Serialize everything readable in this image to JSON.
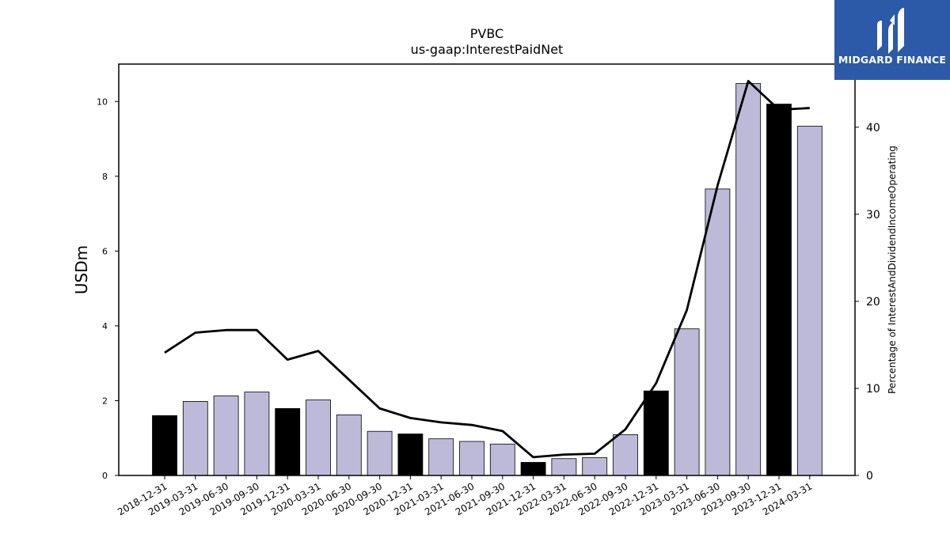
{
  "chart_data": {
    "type": "bar",
    "title": "PVBC",
    "subtitle": "us-gaap:InterestPaidNet",
    "ylabel": "USDm",
    "y2label": "Percentage of InterestAndDividendIncomeOperating",
    "ylim": [
      0,
      11
    ],
    "y2lim": [
      0,
      47.25
    ],
    "yticks": [
      0,
      2,
      4,
      6,
      8,
      10
    ],
    "y2ticks": [
      0,
      10,
      20,
      30,
      40
    ],
    "categories": [
      "2018-12-31",
      "2019-03-31",
      "2019-06-30",
      "2019-09-30",
      "2019-12-31",
      "2020-03-31",
      "2020-06-30",
      "2020-09-30",
      "2020-12-31",
      "2021-03-31",
      "2021-06-30",
      "2021-09-30",
      "2021-12-31",
      "2022-03-31",
      "2022-06-30",
      "2022-09-30",
      "2022-12-31",
      "2023-03-31",
      "2023-06-30",
      "2023-09-30",
      "2023-12-31",
      "2024-03-31"
    ],
    "series": [
      {
        "kind": "bar",
        "values": [
          1.6,
          1.98,
          2.13,
          2.23,
          1.79,
          2.02,
          1.62,
          1.18,
          1.11,
          0.98,
          0.91,
          0.84,
          0.35,
          0.45,
          0.48,
          1.09,
          2.26,
          3.92,
          7.66,
          10.48,
          9.93,
          9.34
        ],
        "highlight": [
          true,
          false,
          false,
          false,
          true,
          false,
          false,
          false,
          true,
          false,
          false,
          false,
          true,
          false,
          false,
          false,
          true,
          false,
          false,
          false,
          true,
          false
        ]
      },
      {
        "kind": "line",
        "axis": "right",
        "values": [
          14.1,
          16.4,
          16.7,
          16.7,
          13.3,
          14.3,
          11.0,
          7.7,
          6.6,
          6.1,
          5.8,
          5.1,
          2.1,
          2.4,
          2.5,
          5.3,
          10.6,
          19.0,
          33.3,
          45.3,
          42.0,
          42.2
        ]
      }
    ],
    "colors": {
      "bar": "#bdbad9",
      "bar_highlight": "#000000",
      "line": "#000000"
    }
  },
  "logo": {
    "text": "MIDGARD FINANCE",
    "background": "#2c5aa8"
  }
}
